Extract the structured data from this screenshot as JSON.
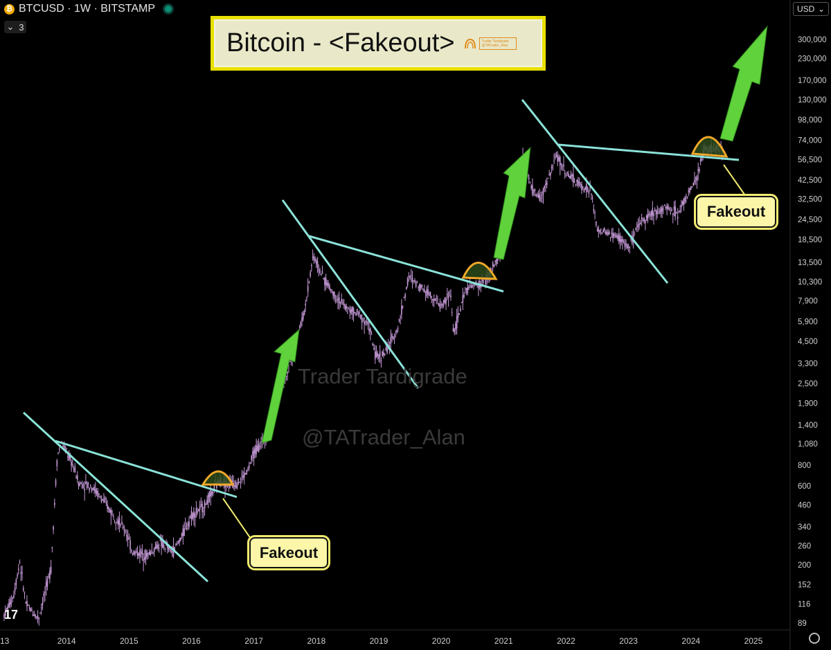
{
  "header": {
    "coin_icon": "bitcoin-icon",
    "coin_glyph": "₿",
    "symbol_line": "BTCUSD · 1W · BITSTAMP",
    "collapse_count": "3",
    "currency": "USD"
  },
  "title": {
    "text": "Bitcoin - <Fakeout>",
    "logo_line1": "Trader Tardigrade",
    "logo_line2": "@TATrader_Alan"
  },
  "watermarks": {
    "name": "Trader Tardigrade",
    "handle": "@TATrader_Alan"
  },
  "callouts": [
    "Fakeout",
    "Fakeout"
  ],
  "colors": {
    "background": "#000000",
    "candles": "#c69ad8",
    "trendlines": "#8be3d9",
    "arrows": "#5fd23c",
    "hump_fill": "#2c4a1b",
    "hump_stroke": "#f0a828",
    "callout_fill": "#fbf6a8",
    "title_border": "#e8e000"
  },
  "chart_data": {
    "type": "line",
    "title": "Bitcoin - <Fakeout>",
    "xlabel": "",
    "ylabel": "",
    "y_scale": "log",
    "ylim": [
      80,
      420000
    ],
    "xlim": [
      "2013-01",
      "2025-07"
    ],
    "x_ticks": [
      "13",
      "2014",
      "2015",
      "2016",
      "2017",
      "2018",
      "2019",
      "2020",
      "2021",
      "2022",
      "2023",
      "2024",
      "2025"
    ],
    "y_ticks": [
      "300,000",
      "230,000",
      "170,000",
      "130,000",
      "98,000",
      "74,000",
      "56,500",
      "42,500",
      "32,500",
      "24,500",
      "18,500",
      "13,500",
      "10,300",
      "7,900",
      "5,900",
      "4,500",
      "3,300",
      "2,500",
      "1,900",
      "1,400",
      "1,080",
      "800",
      "600",
      "460",
      "340",
      "260",
      "200",
      "152",
      "116",
      "89"
    ],
    "series": [
      {
        "values_x": [
          2013.0,
          2013.15,
          2013.25,
          2013.35,
          2013.55,
          2013.75,
          2013.85,
          2013.92,
          2014.1,
          2014.2,
          2014.4,
          2014.6,
          2014.8,
          2014.95,
          2015.05,
          2015.3,
          2015.5,
          2015.7,
          2015.85,
          2016.0,
          2016.2,
          2016.45,
          2016.6,
          2016.75,
          2016.9,
          2017.0,
          2017.2,
          2017.35,
          2017.5,
          2017.65,
          2017.8,
          2017.95,
          2018.1,
          2018.3,
          2018.5,
          2018.7,
          2018.85,
          2018.95,
          2019.1,
          2019.3,
          2019.48,
          2019.7,
          2019.85,
          2020.0,
          2020.15,
          2020.2,
          2020.4,
          2020.6,
          2020.75,
          2020.9,
          2021.0,
          2021.15,
          2021.3,
          2021.45,
          2021.6,
          2021.85,
          2022.0,
          2022.2,
          2022.4,
          2022.5,
          2022.7,
          2022.85,
          2023.0,
          2023.2,
          2023.4,
          2023.6,
          2023.8,
          2023.95,
          2024.1,
          2024.2,
          2024.35,
          2024.5
        ],
        "values_y": [
          100,
          130,
          210,
          115,
          95,
          190,
          900,
          1100,
          800,
          620,
          600,
          480,
          380,
          320,
          240,
          230,
          270,
          240,
          300,
          400,
          450,
          650,
          620,
          630,
          740,
          950,
          1200,
          2000,
          2600,
          4400,
          6500,
          15000,
          11000,
          8500,
          7000,
          6500,
          5500,
          3600,
          3800,
          5300,
          11000,
          9500,
          8500,
          7300,
          8800,
          5000,
          9500,
          9800,
          11000,
          14000,
          19000,
          35000,
          58000,
          37000,
          33000,
          60000,
          47000,
          40000,
          36000,
          21000,
          20000,
          19000,
          16500,
          24000,
          27000,
          29000,
          27000,
          35000,
          43000,
          65000,
          67000,
          63000
        ],
        "name": ""
      }
    ],
    "legend": "none",
    "grid": false
  }
}
